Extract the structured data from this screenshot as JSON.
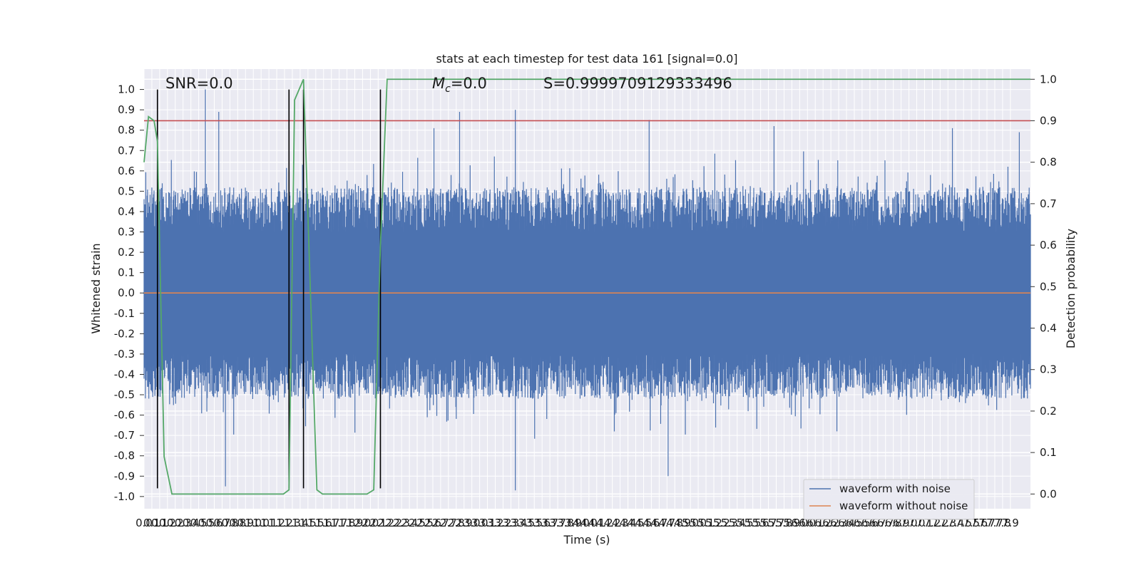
{
  "chart_data": {
    "type": "line",
    "title": "stats at each timestep for test data 161 [signal=0.0]",
    "xlabel": "Time (s)",
    "ylabel_left": "Whitened strain",
    "ylabel_right": "Detection probability",
    "xlim": [
      0.0,
      7.95
    ],
    "ylim_left": [
      -1.06,
      1.1
    ],
    "ylim_right": [
      -0.0355,
      1.0245
    ],
    "x_ticks": [
      "0.0",
      "0.1",
      "0.1",
      "0.2",
      "0.2",
      "0.3",
      "0.4",
      "0.5",
      "0.5",
      "0.6",
      "0.7",
      "0.8",
      "0.8",
      "0.9",
      "1.0",
      "1.0",
      "1.1",
      "1.2",
      "1.2",
      "1.3",
      "1.4",
      "1.5",
      "1.5",
      "1.6",
      "1.7",
      "1.7",
      "1.8",
      "1.9",
      "2.0",
      "2.0",
      "2.1",
      "2.2",
      "2.2",
      "2.3",
      "2.4",
      "2.5",
      "2.5",
      "2.6",
      "2.7",
      "2.7",
      "2.8",
      "2.9",
      "3.0",
      "3.0",
      "3.1",
      "3.2",
      "3.2",
      "3.3",
      "3.4",
      "3.5",
      "3.5",
      "3.6",
      "3.7",
      "3.7",
      "3.8",
      "3.9",
      "4.0",
      "4.0",
      "4.1",
      "4.2",
      "4.2",
      "4.3",
      "4.4",
      "4.5",
      "4.5",
      "4.6",
      "4.7",
      "4.7",
      "4.8",
      "4.9",
      "5.0",
      "5.0",
      "5.1",
      "5.2",
      "5.2",
      "5.3",
      "5.4",
      "5.5",
      "5.5",
      "5.6",
      "5.7",
      "5.7",
      "5.8",
      "5.9",
      "6.0",
      "6.0",
      "6.1",
      "6.2",
      "6.2",
      "6.3",
      "6.4",
      "6.5",
      "6.5",
      "6.6",
      "6.7",
      "6.7",
      "6.8",
      "6.9",
      "7.0",
      "7.0",
      "7.1",
      "7.2",
      "7.2",
      "7.3",
      "7.4",
      "7.5",
      "7.5",
      "7.6",
      "7.7",
      "7.7",
      "7.8",
      "7.9"
    ],
    "y_ticks_left": [
      "1.0",
      "0.9",
      "0.8",
      "0.7",
      "0.6",
      "0.5",
      "0.4",
      "0.3",
      "0.2",
      "0.1",
      "0.0",
      "-0.1",
      "-0.2",
      "-0.3",
      "-0.4",
      "-0.5",
      "-0.6",
      "-0.7",
      "-0.8",
      "-0.9",
      "-1.0"
    ],
    "y_ticks_right": [
      "1.0",
      "0.9",
      "0.8",
      "0.7",
      "0.6",
      "0.5",
      "0.4",
      "0.3",
      "0.2",
      "0.1",
      "0.0"
    ],
    "series": [
      {
        "name": "waveform with noise",
        "color": "#4c72b0",
        "axis": "left",
        "kind": "noise",
        "sample_count": 2048,
        "envelope_typical": [
          -0.42,
          0.45
        ],
        "peaks": [
          [
            0.55,
            1.0
          ],
          [
            0.67,
            0.89
          ],
          [
            2.6,
            0.81
          ],
          [
            2.83,
            0.89
          ],
          [
            3.33,
            0.9
          ],
          [
            4.53,
            0.85
          ],
          [
            5.65,
            0.82
          ],
          [
            7.25,
            0.81
          ],
          [
            7.85,
            0.79
          ],
          [
            3.33,
            -0.97
          ],
          [
            0.73,
            -0.95
          ],
          [
            4.7,
            -0.9
          ]
        ]
      },
      {
        "name": "waveform without noise",
        "color": "#dd8452",
        "axis": "left",
        "x": [
          0.0,
          7.95
        ],
        "y": [
          0.0,
          0.0
        ]
      },
      {
        "name": "detection probability",
        "color": "#55a868",
        "axis": "right",
        "x": [
          0.0,
          0.04,
          0.09,
          0.12,
          0.18,
          0.25,
          1.25,
          1.3,
          1.35,
          1.43,
          1.55,
          1.6,
          2.0,
          2.06,
          2.12,
          2.18,
          7.95
        ],
        "y": [
          0.8,
          0.91,
          0.9,
          0.85,
          0.09,
          0.0,
          0.0,
          0.01,
          0.95,
          1.0,
          0.01,
          0.0,
          0.0,
          0.01,
          0.6,
          1.0,
          1.0
        ]
      }
    ],
    "threshold": {
      "axis": "right",
      "value": 0.9,
      "color": "#c44e52"
    },
    "vlines": {
      "x": [
        0.12,
        1.3,
        1.43,
        2.12
      ],
      "ymin": -0.96,
      "ymax": 1.0,
      "color": "#000000"
    },
    "annotations": {
      "snr": "SNR=0.0",
      "mc_symbol": "M",
      "mc_subscript": "c",
      "mc_value": "=0.0",
      "s": "S=0.9999709129333496"
    },
    "legend": {
      "position": "lower-right",
      "entries": [
        "waveform with noise",
        "waveform without noise"
      ]
    },
    "grid": true
  }
}
